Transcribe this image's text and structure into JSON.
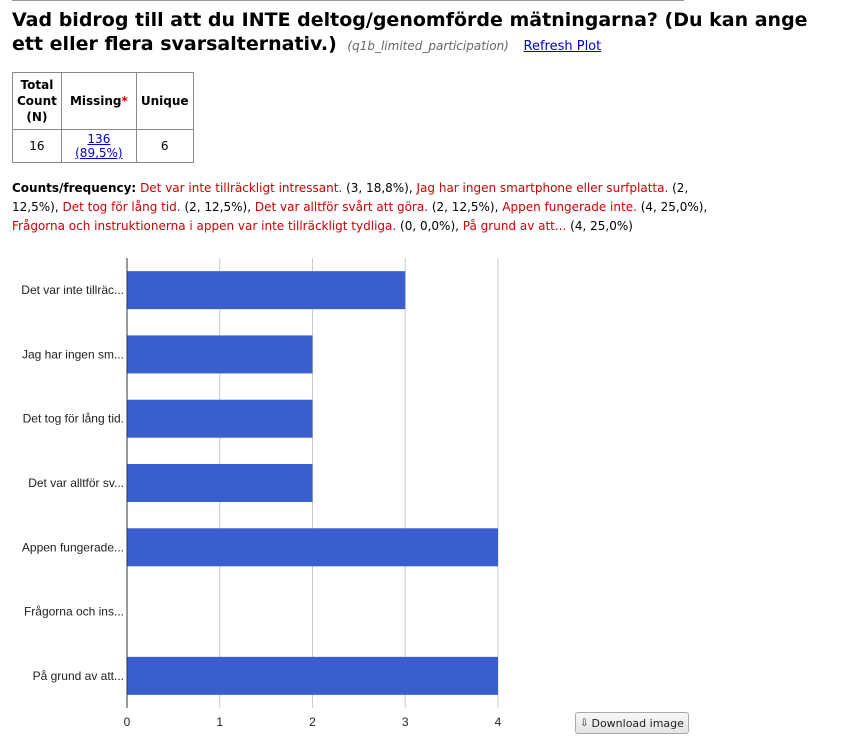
{
  "question": {
    "title": "Vad bidrog till att du INTE deltog/genomförde mätningarna? (Du kan ange ett eller flera svarsalternativ.)",
    "variable": "(q1b_limited_participation)",
    "refresh_label": "Refresh Plot"
  },
  "stats": {
    "headers": {
      "total_line1": "Total",
      "total_line2": "Count",
      "total_line3": "(N)",
      "missing": "Missing",
      "missing_marker": "*",
      "unique": "Unique"
    },
    "total": "16",
    "missing": "136 (89,5%)",
    "unique": "6"
  },
  "frequency": {
    "label": "Counts/frequency:",
    "items": [
      {
        "category": "Det var inte tillräckligt intressant.",
        "count": "(3, 18,8%)"
      },
      {
        "category": "Jag har ingen smartphone eller surfplatta.",
        "count": "(2, 12,5%)"
      },
      {
        "category": "Det tog för lång tid.",
        "count": "(2, 12,5%)"
      },
      {
        "category": "Det var alltför svårt att göra.",
        "count": "(2, 12,5%)"
      },
      {
        "category": "Appen fungerade inte.",
        "count": "(4, 25,0%)"
      },
      {
        "category": "Frågorna och instruktionerna i appen var inte tillräckligt tydliga.",
        "count": "(0, 0,0%)"
      },
      {
        "category": "På grund av att...",
        "count": "(4, 25,0%)"
      }
    ]
  },
  "chart_data": {
    "type": "bar",
    "orientation": "horizontal",
    "categories": [
      "Det var inte tillräc...",
      "Jag har ingen sm...",
      "Det tog för lång tid.",
      "Det var alltför sv...",
      "Appen fungerade...",
      "Frågorna och ins...",
      "På grund av att..."
    ],
    "values": [
      3,
      2,
      2,
      2,
      4,
      0,
      4
    ],
    "xlim": [
      0,
      4
    ],
    "xticks": [
      "0",
      "1",
      "2",
      "3",
      "4"
    ],
    "bar_color": "#3a5fcd",
    "grid": true
  },
  "download": {
    "label": "Download image",
    "icon": "download-icon"
  }
}
